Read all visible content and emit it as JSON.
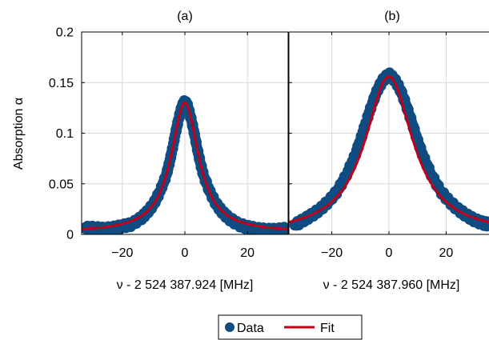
{
  "figure": {
    "ylabel": "Absorption α",
    "legend": {
      "position": "bottom-center",
      "data_label": "Data",
      "fit_label": "Fit"
    },
    "colors": {
      "data": "#0f4c81",
      "fit": "#c00018",
      "grid": "#d9d9d9"
    }
  },
  "chart_data": [
    {
      "type": "scatter",
      "title": "(a)",
      "xlabel": "ν - 2 524 387.924 [MHz]",
      "ylabel": "Absorption α",
      "xlim": [
        -33,
        33
      ],
      "ylim": [
        0,
        0.2
      ],
      "xticks": [
        -20,
        0,
        20
      ],
      "yticks": [
        0,
        0.05,
        0.1,
        0.15,
        0.2
      ],
      "xtick_labels": [
        "−20",
        "0",
        "20"
      ],
      "ytick_labels": [
        "0",
        "0.05",
        "0.1",
        "0.15",
        "0.2"
      ],
      "grid": true,
      "fit_model": {
        "shape": "lorentzian",
        "center": 0,
        "amplitude": 0.128,
        "hwhm": 5.3,
        "offset": 0.002
      },
      "series": [
        {
          "name": "Data",
          "style": "markers",
          "x": [
            -32,
            -29,
            -26,
            -23,
            -20,
            -17,
            -14,
            -12,
            -10,
            -8,
            -6,
            -5,
            -4,
            -3,
            -2,
            -1,
            0,
            1,
            2,
            3,
            4,
            5,
            6,
            8,
            10,
            12,
            14,
            17,
            20,
            23,
            26,
            29,
            32
          ],
          "y": [
            0.006,
            0.006,
            0.005,
            0.006,
            0.008,
            0.01,
            0.016,
            0.022,
            0.03,
            0.042,
            0.058,
            0.07,
            0.084,
            0.1,
            0.114,
            0.126,
            0.131,
            0.126,
            0.114,
            0.1,
            0.084,
            0.07,
            0.058,
            0.042,
            0.03,
            0.022,
            0.016,
            0.01,
            0.007,
            0.005,
            0.004,
            0.004,
            0.005
          ]
        },
        {
          "name": "Fit",
          "style": "line"
        }
      ]
    },
    {
      "type": "scatter",
      "title": "(b)",
      "xlabel": "ν - 2 524 387.960 [MHz]",
      "xlim": [
        -35,
        35
      ],
      "ylim": [
        0,
        0.2
      ],
      "xticks": [
        -20,
        0,
        20
      ],
      "xtick_labels": [
        "−20",
        "0",
        "20"
      ],
      "grid": true,
      "fit_model": {
        "shape": "lorentzian",
        "center": 0,
        "amplitude": 0.156,
        "hwhm": 10.2,
        "offset": 0.0
      },
      "series": [
        {
          "name": "Data",
          "style": "markers",
          "x": [
            -33,
            -30,
            -27,
            -24,
            -21,
            -18,
            -15,
            -12,
            -10,
            -8,
            -6,
            -4,
            -2,
            0,
            2,
            4,
            6,
            8,
            10,
            12,
            15,
            18,
            21,
            24,
            27,
            30,
            33,
            35
          ],
          "y": [
            0.009,
            0.014,
            0.019,
            0.025,
            0.033,
            0.043,
            0.058,
            0.077,
            0.093,
            0.111,
            0.128,
            0.143,
            0.153,
            0.158,
            0.153,
            0.143,
            0.128,
            0.111,
            0.093,
            0.077,
            0.058,
            0.043,
            0.033,
            0.025,
            0.019,
            0.014,
            0.011,
            0.01
          ]
        },
        {
          "name": "Fit",
          "style": "line"
        }
      ]
    }
  ]
}
